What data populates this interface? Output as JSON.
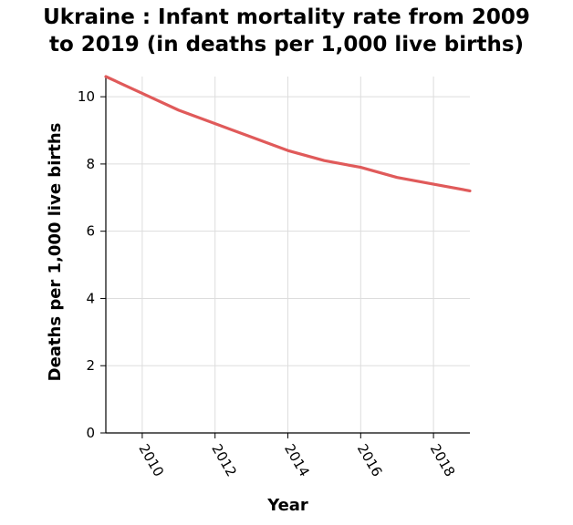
{
  "chart_data": {
    "type": "line",
    "title_line1": "Ukraine : Infant mortality rate from 2009",
    "title_line2": "to 2019 (in deaths per 1,000 live births)",
    "xlabel": "Year",
    "ylabel": "Deaths per 1,000 live births",
    "xlim": [
      2009,
      2019
    ],
    "ylim": [
      0,
      10.6
    ],
    "x_ticks": [
      2010,
      2012,
      2014,
      2016,
      2018
    ],
    "y_ticks": [
      0,
      2,
      4,
      6,
      8,
      10
    ],
    "grid": true,
    "line_color": "#e05a5a",
    "series": [
      {
        "x": [
          2009,
          2010,
          2011,
          2012,
          2013,
          2014,
          2015,
          2016,
          2017,
          2018,
          2019
        ],
        "values": [
          10.6,
          10.1,
          9.6,
          9.2,
          8.8,
          8.4,
          8.1,
          7.9,
          7.6,
          7.4,
          7.2
        ]
      }
    ]
  }
}
